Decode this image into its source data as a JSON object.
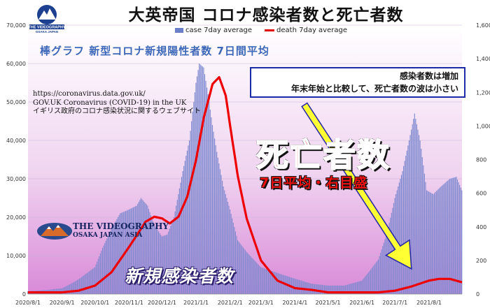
{
  "title": "大英帝国 コロナ感染者数と死亡者数",
  "logo": {
    "line1": "THE VIDEOGRAPHY",
    "line2": "OSAKA JAPAN ASIA",
    "small_top": "THE VIDEOGRAPHY",
    "small_bottom": "OSAKA JAPAN"
  },
  "subtitle": "棒グラフ 新型コロナ新規陽性者数 7日間平均",
  "source": [
    "https://coronavirus.data.gov.uk/",
    "GOV.UK  Coronavirus (COVID-19) in the UK",
    "イギリス政府のコロナ感染状況に関するウェブサイト"
  ],
  "note": [
    "感染者数は増加",
    "年末年始と比較して、死亡者数の波は小さい"
  ],
  "big_label": "死亡者数",
  "big_sub": "7日平均・右目盛",
  "bars_label": "新規感染者数",
  "colors": {
    "bar": "#7f8ad0",
    "line": "#ee0000",
    "bg_top": "#ffffff",
    "bg_bottom": "#d98ad8",
    "arrow": "#ffff33"
  },
  "chart_data": {
    "type": "bar",
    "title": "",
    "xlabel": "",
    "ylabel": "",
    "legend_position": "top",
    "y_left_lim": [
      0,
      70000
    ],
    "y_left_ticks": [
      "0",
      "10,000",
      "20,000",
      "30,000",
      "40,000",
      "50,000",
      "60,000",
      "70,000"
    ],
    "y_right_lim": [
      0,
      1600
    ],
    "y_right_ticks": [
      "0",
      "200",
      "400",
      "600",
      "800",
      "1,000",
      "1,200",
      "1,400",
      "1,600"
    ],
    "x_ticks": [
      "2020/8/1",
      "2020/9/1",
      "2020/10/1",
      "2020/11/1",
      "2020/12/1",
      "2021/1/1",
      "2021/2/1",
      "2021/3/1",
      "2021/4/1",
      "2021/5/1",
      "2021/6/1",
      "2021/7/1",
      "2021/8/1"
    ],
    "x_range": [
      "2020/8/1",
      "2021/8/31"
    ],
    "series": [
      {
        "name": "case 7day average",
        "axis": "left",
        "kind": "bar",
        "points": [
          [
            "2020/8/1",
            750
          ],
          [
            "2020/8/16",
            1000
          ],
          [
            "2020/9/1",
            1500
          ],
          [
            "2020/9/8",
            2500
          ],
          [
            "2020/9/16",
            3800
          ],
          [
            "2020/10/1",
            7000
          ],
          [
            "2020/10/8",
            12000
          ],
          [
            "2020/10/16",
            17000
          ],
          [
            "2020/10/24",
            21000
          ],
          [
            "2020/11/1",
            22000
          ],
          [
            "2020/11/8",
            23000
          ],
          [
            "2020/11/12",
            25000
          ],
          [
            "2020/11/18",
            23000
          ],
          [
            "2020/11/24",
            18000
          ],
          [
            "2020/12/1",
            15000
          ],
          [
            "2020/12/6",
            15500
          ],
          [
            "2020/12/12",
            20000
          ],
          [
            "2020/12/20",
            32000
          ],
          [
            "2020/12/26",
            40000
          ],
          [
            "2021/1/1",
            55000
          ],
          [
            "2021/1/4",
            60000
          ],
          [
            "2021/1/8",
            59000
          ],
          [
            "2021/1/12",
            52000
          ],
          [
            "2021/1/16",
            44000
          ],
          [
            "2021/1/20",
            37000
          ],
          [
            "2021/1/26",
            28000
          ],
          [
            "2021/2/1",
            22000
          ],
          [
            "2021/2/8",
            14000
          ],
          [
            "2021/2/16",
            11000
          ],
          [
            "2021/3/1",
            7000
          ],
          [
            "2021/3/16",
            5500
          ],
          [
            "2021/4/1",
            4000
          ],
          [
            "2021/4/16",
            2700
          ],
          [
            "2021/5/1",
            2200
          ],
          [
            "2021/5/16",
            2200
          ],
          [
            "2021/6/1",
            3500
          ],
          [
            "2021/6/8",
            6000
          ],
          [
            "2021/6/16",
            9000
          ],
          [
            "2021/6/24",
            16000
          ],
          [
            "2021/7/1",
            25000
          ],
          [
            "2021/7/8",
            32000
          ],
          [
            "2021/7/14",
            40000
          ],
          [
            "2021/7/19",
            47000
          ],
          [
            "2021/7/24",
            40000
          ],
          [
            "2021/7/30",
            27000
          ],
          [
            "2021/8/5",
            26000
          ],
          [
            "2021/8/12",
            28000
          ],
          [
            "2021/8/20",
            30000
          ],
          [
            "2021/8/26",
            30500
          ],
          [
            "2021/8/31",
            27000
          ]
        ]
      },
      {
        "name": "death 7day average",
        "axis": "right",
        "kind": "line",
        "points": [
          [
            "2020/8/1",
            10
          ],
          [
            "2020/9/1",
            10
          ],
          [
            "2020/9/16",
            20
          ],
          [
            "2020/10/1",
            50
          ],
          [
            "2020/10/16",
            130
          ],
          [
            "2020/11/1",
            280
          ],
          [
            "2020/11/16",
            430
          ],
          [
            "2020/11/24",
            460
          ],
          [
            "2020/12/1",
            450
          ],
          [
            "2020/12/8",
            420
          ],
          [
            "2020/12/16",
            460
          ],
          [
            "2020/12/24",
            580
          ],
          [
            "2021/1/1",
            800
          ],
          [
            "2021/1/8",
            1050
          ],
          [
            "2021/1/16",
            1250
          ],
          [
            "2021/1/22",
            1290
          ],
          [
            "2021/1/28",
            1180
          ],
          [
            "2021/2/1",
            1000
          ],
          [
            "2021/2/8",
            700
          ],
          [
            "2021/2/16",
            450
          ],
          [
            "2021/3/1",
            200
          ],
          [
            "2021/3/16",
            80
          ],
          [
            "2021/4/1",
            35
          ],
          [
            "2021/4/16",
            25
          ],
          [
            "2021/5/1",
            10
          ],
          [
            "2021/6/1",
            10
          ],
          [
            "2021/6/16",
            10
          ],
          [
            "2021/7/1",
            20
          ],
          [
            "2021/7/16",
            45
          ],
          [
            "2021/8/1",
            80
          ],
          [
            "2021/8/10",
            90
          ],
          [
            "2021/8/20",
            90
          ],
          [
            "2021/8/31",
            70
          ]
        ]
      }
    ]
  }
}
